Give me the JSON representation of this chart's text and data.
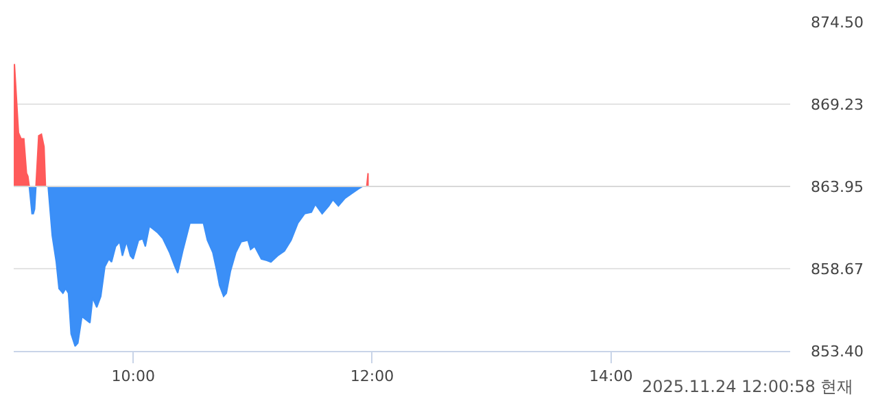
{
  "chart_data": {
    "type": "area",
    "x": [
      9.006,
      9.04,
      9.062,
      9.085,
      9.107,
      9.119,
      9.13,
      9.153,
      9.164,
      9.175,
      9.186,
      9.209,
      9.232,
      9.254,
      9.266,
      9.288,
      9.322,
      9.356,
      9.379,
      9.412,
      9.435,
      9.458,
      9.48,
      9.514,
      9.537,
      9.571,
      9.605,
      9.638,
      9.661,
      9.695,
      9.729,
      9.763,
      9.797,
      9.819,
      9.853,
      9.887,
      9.91,
      9.944,
      9.977,
      10.0,
      10.045,
      10.079,
      10.102,
      10.136,
      10.169,
      10.203,
      10.249,
      10.305,
      10.35,
      10.373,
      10.418,
      10.475,
      10.508,
      10.554,
      10.588,
      10.621,
      10.667,
      10.701,
      10.723,
      10.757,
      10.78,
      10.814,
      10.859,
      10.904,
      10.96,
      10.983,
      11.017,
      11.073,
      11.119,
      11.153,
      11.209,
      11.266,
      11.322,
      11.379,
      11.435,
      11.492,
      11.525,
      11.582,
      11.638,
      11.672,
      11.718,
      11.774,
      11.831,
      11.887,
      11.921,
      11.944,
      11.955,
      11.966
    ],
    "series": [
      {
        "color": "#ff5a5a",
        "values": [
          871.8,
          867.4,
          867.0,
          867.0,
          864.8,
          864.6,
          863.95,
          null,
          null,
          null,
          863.95,
          867.2,
          867.3,
          866.5,
          863.95,
          null,
          null,
          null,
          null,
          null,
          null,
          null,
          null,
          null,
          null,
          null,
          null,
          null,
          null,
          null,
          null,
          null,
          null,
          null,
          null,
          null,
          null,
          null,
          null,
          null,
          null,
          null,
          null,
          null,
          null,
          null,
          null,
          null,
          null,
          null,
          null,
          null,
          null,
          null,
          null,
          null,
          null,
          null,
          null,
          null,
          null,
          null,
          null,
          null,
          null,
          null,
          null,
          null,
          null,
          null,
          null,
          null,
          null,
          null,
          null,
          null,
          null,
          null,
          null,
          null,
          null,
          null,
          null,
          null,
          null,
          null,
          863.95,
          864.8
        ]
      },
      {
        "color": "#3b8ff7",
        "values": [
          null,
          null,
          null,
          null,
          null,
          null,
          863.95,
          862.2,
          862.2,
          862.5,
          863.95,
          null,
          null,
          null,
          863.95,
          863.95,
          860.8,
          859.1,
          857.4,
          857.1,
          857.4,
          857.1,
          854.5,
          853.7,
          853.9,
          855.6,
          855.4,
          855.2,
          856.8,
          856.2,
          856.9,
          858.8,
          859.3,
          859.1,
          860.1,
          860.4,
          859.5,
          860.4,
          859.5,
          859.3,
          860.5,
          860.6,
          860.1,
          861.4,
          861.2,
          861.0,
          860.6,
          859.7,
          858.8,
          858.4,
          859.9,
          861.6,
          861.6,
          861.6,
          861.6,
          860.5,
          859.7,
          858.5,
          857.6,
          856.9,
          857.1,
          858.5,
          859.7,
          860.4,
          860.5,
          859.9,
          860.1,
          859.3,
          859.2,
          859.1,
          859.5,
          859.8,
          860.5,
          861.6,
          862.2,
          862.3,
          862.8,
          862.2,
          862.7,
          863.1,
          862.7,
          863.2,
          863.5,
          863.8,
          863.95,
          863.95,
          863.95,
          null
        ]
      }
    ],
    "ref_lines": [
      {
        "axis": "y",
        "value": 863.95,
        "color": "#d8d8d8"
      }
    ],
    "xlim": [
      9,
      15.5
    ],
    "xticks": [
      {
        "value": 10,
        "label": "10:00"
      },
      {
        "value": 12,
        "label": "12:00"
      },
      {
        "value": 14,
        "label": "14:00"
      }
    ],
    "ylim": [
      853.4,
      874.5
    ],
    "yticks": [
      {
        "value": 853.4,
        "label": "853.40"
      },
      {
        "value": 858.67,
        "label": "858.67"
      },
      {
        "value": 863.95,
        "label": "863.95"
      },
      {
        "value": 869.23,
        "label": "869.23"
      },
      {
        "value": 874.5,
        "label": "874.50"
      }
    ],
    "grid": "y",
    "annotations": [
      "2025.11.24 12:00:58 현재"
    ]
  }
}
